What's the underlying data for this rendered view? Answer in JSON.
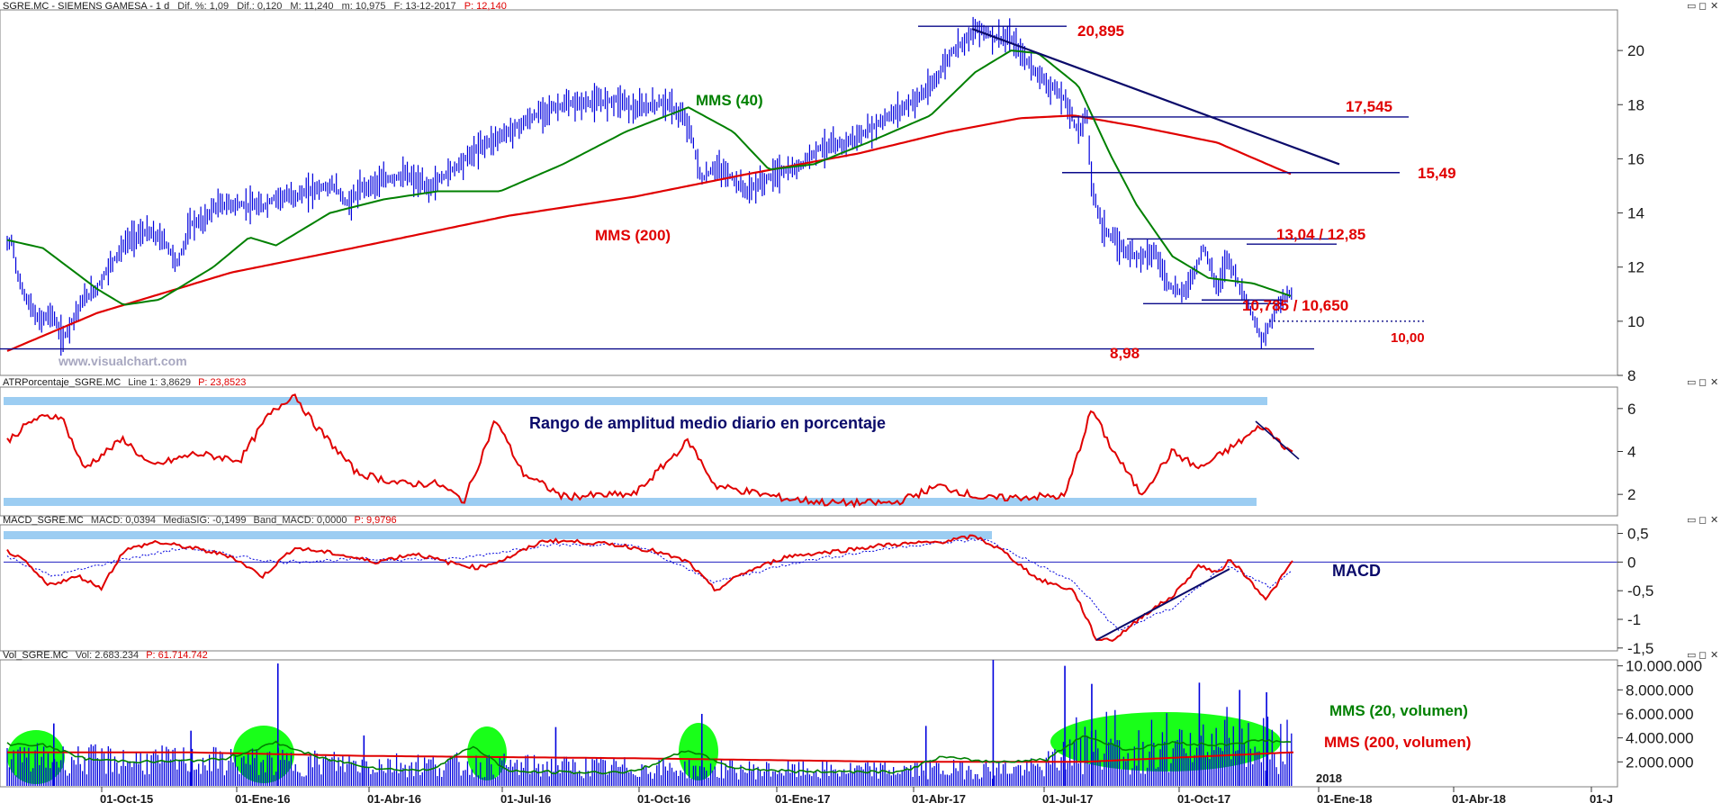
{
  "panels": {
    "price": {
      "header": {
        "symbol": "SGRE.MC - SIEMENS GAMESA - 1 d",
        "dif_pct": "Dif. %: 1,09",
        "dif": "Dif.: 0,120",
        "max": "M: 11,240",
        "min": "m: 10,975",
        "date": "F: 13-12-2017",
        "price": "P: 12,140"
      },
      "y_ticks": [
        "20",
        "18",
        "16",
        "14",
        "12",
        "10",
        "8"
      ],
      "watermark": "www.visualchart.com",
      "labels": {
        "mms40": "MMS (40)",
        "mms200": "MMS (200)"
      },
      "levels": [
        {
          "label": "20,895",
          "value": 20.895
        },
        {
          "label": "17,545",
          "value": 17.545
        },
        {
          "label": "15,49",
          "value": 15.49
        },
        {
          "label": "13,04 / 12,85",
          "value": 13.04
        },
        {
          "label": "10,785 / 10,650",
          "value": 10.785
        },
        {
          "label": "10,00",
          "value": 10.0
        },
        {
          "label": "8,98",
          "value": 8.98
        }
      ]
    },
    "atr": {
      "header": {
        "name": "ATRPorcentaje_SGRE.MC",
        "line": "Line 1: 3,8629",
        "price": "P: 23,8523"
      },
      "y_ticks": [
        "6",
        "4",
        "2"
      ],
      "title": "Rango de amplitud medio diario en porcentaje"
    },
    "macd": {
      "header": {
        "name": "MACD_SGRE.MC",
        "macd": "MACD: 0,0394",
        "signal": "MediaSIG: -0,1499",
        "band": "Band_MACD: 0,0000",
        "price": "P: 9,9796"
      },
      "y_ticks": [
        "0,5",
        "0",
        "-0,5",
        "-1",
        "-1,5"
      ],
      "title": "MACD"
    },
    "volume": {
      "header": {
        "name": "Vol_SGRE.MC",
        "vol": "Vol: 2.683.234",
        "price": "P: 61.714.742"
      },
      "y_ticks": [
        "10.000.000",
        "8.000.000",
        "6.000.000",
        "4.000.000",
        "2.000.000"
      ],
      "labels": {
        "mms20": "MMS (20, volumen)",
        "mms200": "MMS (200, volumen)"
      },
      "year_marker": "2018"
    }
  },
  "x_axis": {
    "ticks": [
      "01-Oct-15",
      "01-Ene-16",
      "01-Abr-16",
      "01-Jul-16",
      "01-Oct-16",
      "01-Ene-17",
      "01-Abr-17",
      "01-Jul-17",
      "01-Oct-17",
      "01-Ene-18",
      "01-Abr-18",
      "01-J"
    ]
  },
  "window_controls": {
    "minimize": "▭",
    "restore": "◻",
    "close": "✕"
  },
  "colors": {
    "price_bars": "#0000dd",
    "mms40": "#008000",
    "mms200": "#e00000",
    "atr_line": "#e00000",
    "macd_line": "#e00000",
    "signal_line": "#0000dd",
    "volume_bars": "#0000dd",
    "highlight_band": "#9ccdf2",
    "trend_line": "#0a0a6a",
    "volume_ellipse": "#19ff19"
  },
  "chart_data": {
    "type": "line",
    "title": "SGRE.MC - SIEMENS GAMESA - 1 d",
    "x_range": [
      "01-Oct-15",
      "01-J"
    ],
    "price_ylim": [
      8,
      21.5
    ],
    "price_keypoints": [
      {
        "t": 0,
        "y": 12.8
      },
      {
        "t": 6,
        "y": 13.0
      },
      {
        "t": 12,
        "y": 11.6
      },
      {
        "t": 22,
        "y": 10.8
      },
      {
        "t": 35,
        "y": 10.0
      },
      {
        "t": 50,
        "y": 10.3
      },
      {
        "t": 62,
        "y": 9.3
      },
      {
        "t": 72,
        "y": 10.0
      },
      {
        "t": 85,
        "y": 10.8
      },
      {
        "t": 100,
        "y": 11.2
      },
      {
        "t": 115,
        "y": 12.1
      },
      {
        "t": 135,
        "y": 13.0
      },
      {
        "t": 155,
        "y": 13.3
      },
      {
        "t": 175,
        "y": 13.0
      },
      {
        "t": 190,
        "y": 12.1
      },
      {
        "t": 205,
        "y": 13.6
      },
      {
        "t": 220,
        "y": 13.7
      },
      {
        "t": 230,
        "y": 14.2
      },
      {
        "t": 240,
        "y": 14.3
      },
      {
        "t": 265,
        "y": 14.3
      },
      {
        "t": 285,
        "y": 14.2
      },
      {
        "t": 300,
        "y": 14.6
      },
      {
        "t": 320,
        "y": 14.6
      },
      {
        "t": 345,
        "y": 14.9
      },
      {
        "t": 365,
        "y": 15.0
      },
      {
        "t": 380,
        "y": 14.3
      },
      {
        "t": 395,
        "y": 14.9
      },
      {
        "t": 420,
        "y": 15.2
      },
      {
        "t": 445,
        "y": 15.4
      },
      {
        "t": 470,
        "y": 14.9
      },
      {
        "t": 500,
        "y": 15.7
      },
      {
        "t": 530,
        "y": 16.5
      },
      {
        "t": 560,
        "y": 17.0
      },
      {
        "t": 600,
        "y": 17.8
      },
      {
        "t": 625,
        "y": 18.0
      },
      {
        "t": 660,
        "y": 18.1
      },
      {
        "t": 685,
        "y": 18.2
      },
      {
        "t": 700,
        "y": 17.8
      },
      {
        "t": 735,
        "y": 18.1
      },
      {
        "t": 760,
        "y": 17.3
      },
      {
        "t": 775,
        "y": 15.2
      },
      {
        "t": 790,
        "y": 15.7
      },
      {
        "t": 805,
        "y": 15.4
      },
      {
        "t": 825,
        "y": 14.8
      },
      {
        "t": 840,
        "y": 15.1
      },
      {
        "t": 860,
        "y": 15.5
      },
      {
        "t": 880,
        "y": 15.6
      },
      {
        "t": 905,
        "y": 16.4
      },
      {
        "t": 930,
        "y": 16.5
      },
      {
        "t": 955,
        "y": 16.9
      },
      {
        "t": 980,
        "y": 17.5
      },
      {
        "t": 1005,
        "y": 18.0
      },
      {
        "t": 1030,
        "y": 18.6
      },
      {
        "t": 1055,
        "y": 20.0
      },
      {
        "t": 1075,
        "y": 20.6
      },
      {
        "t": 1085,
        "y": 20.85
      },
      {
        "t": 1100,
        "y": 20.5
      },
      {
        "t": 1120,
        "y": 20.4
      },
      {
        "t": 1140,
        "y": 19.5
      },
      {
        "t": 1160,
        "y": 18.8
      },
      {
        "t": 1180,
        "y": 18.2
      },
      {
        "t": 1195,
        "y": 17.0
      },
      {
        "t": 1205,
        "y": 17.6
      },
      {
        "t": 1210,
        "y": 15.0
      },
      {
        "t": 1222,
        "y": 13.5
      },
      {
        "t": 1240,
        "y": 12.8
      },
      {
        "t": 1260,
        "y": 12.4
      },
      {
        "t": 1280,
        "y": 12.6
      },
      {
        "t": 1295,
        "y": 11.4
      },
      {
        "t": 1310,
        "y": 11.0
      },
      {
        "t": 1325,
        "y": 11.8
      },
      {
        "t": 1335,
        "y": 12.8
      },
      {
        "t": 1350,
        "y": 11.2
      },
      {
        "t": 1362,
        "y": 12.4
      },
      {
        "t": 1375,
        "y": 11.3
      },
      {
        "t": 1388,
        "y": 10.4
      },
      {
        "t": 1400,
        "y": 9.2
      },
      {
        "t": 1415,
        "y": 10.4
      },
      {
        "t": 1425,
        "y": 10.9
      },
      {
        "t": 1435,
        "y": 11.1
      }
    ],
    "annotated_levels": [
      20.895,
      17.545,
      15.49,
      13.04,
      12.85,
      10.785,
      10.65,
      10.0,
      8.98
    ],
    "atr_ylim": [
      1,
      7
    ],
    "atr_keypoints": [
      {
        "t": 0,
        "y": 4.5
      },
      {
        "t": 30,
        "y": 5.5
      },
      {
        "t": 60,
        "y": 5.7
      },
      {
        "t": 85,
        "y": 3.2
      },
      {
        "t": 130,
        "y": 4.6
      },
      {
        "t": 160,
        "y": 3.3
      },
      {
        "t": 210,
        "y": 3.9
      },
      {
        "t": 260,
        "y": 3.6
      },
      {
        "t": 290,
        "y": 5.6
      },
      {
        "t": 320,
        "y": 6.7
      },
      {
        "t": 340,
        "y": 5.4
      },
      {
        "t": 390,
        "y": 3.0
      },
      {
        "t": 440,
        "y": 2.5
      },
      {
        "t": 480,
        "y": 2.5
      },
      {
        "t": 510,
        "y": 1.7
      },
      {
        "t": 545,
        "y": 5.5
      },
      {
        "t": 575,
        "y": 3.0
      },
      {
        "t": 620,
        "y": 1.9
      },
      {
        "t": 700,
        "y": 2.0
      },
      {
        "t": 760,
        "y": 4.5
      },
      {
        "t": 790,
        "y": 2.4
      },
      {
        "t": 870,
        "y": 1.8
      },
      {
        "t": 920,
        "y": 1.6
      },
      {
        "t": 990,
        "y": 1.6
      },
      {
        "t": 1040,
        "y": 2.4
      },
      {
        "t": 1090,
        "y": 1.8
      },
      {
        "t": 1150,
        "y": 1.9
      },
      {
        "t": 1180,
        "y": 1.9
      },
      {
        "t": 1210,
        "y": 6.0
      },
      {
        "t": 1230,
        "y": 4.3
      },
      {
        "t": 1265,
        "y": 2.0
      },
      {
        "t": 1300,
        "y": 4.0
      },
      {
        "t": 1330,
        "y": 3.2
      },
      {
        "t": 1370,
        "y": 4.3
      },
      {
        "t": 1400,
        "y": 5.2
      },
      {
        "t": 1435,
        "y": 3.9
      }
    ],
    "macd_ylim": [
      -1.5,
      0.6
    ],
    "macd_keypoints": [
      {
        "t": 0,
        "y": 0.2
      },
      {
        "t": 20,
        "y": 0.0
      },
      {
        "t": 45,
        "y": -0.4
      },
      {
        "t": 80,
        "y": -0.25
      },
      {
        "t": 105,
        "y": -0.45
      },
      {
        "t": 130,
        "y": 0.2
      },
      {
        "t": 165,
        "y": 0.35
      },
      {
        "t": 205,
        "y": 0.25
      },
      {
        "t": 250,
        "y": 0.1
      },
      {
        "t": 285,
        "y": -0.25
      },
      {
        "t": 320,
        "y": 0.25
      },
      {
        "t": 365,
        "y": 0.15
      },
      {
        "t": 410,
        "y": 0.0
      },
      {
        "t": 455,
        "y": 0.15
      },
      {
        "t": 490,
        "y": 0.0
      },
      {
        "t": 525,
        "y": -0.1
      },
      {
        "t": 555,
        "y": 0.05
      },
      {
        "t": 600,
        "y": 0.38
      },
      {
        "t": 640,
        "y": 0.35
      },
      {
        "t": 680,
        "y": 0.3
      },
      {
        "t": 720,
        "y": 0.2
      },
      {
        "t": 760,
        "y": 0.0
      },
      {
        "t": 790,
        "y": -0.5
      },
      {
        "t": 820,
        "y": -0.2
      },
      {
        "t": 870,
        "y": 0.1
      },
      {
        "t": 930,
        "y": 0.2
      },
      {
        "t": 980,
        "y": 0.3
      },
      {
        "t": 1040,
        "y": 0.35
      },
      {
        "t": 1080,
        "y": 0.45
      },
      {
        "t": 1110,
        "y": 0.2
      },
      {
        "t": 1150,
        "y": -0.3
      },
      {
        "t": 1190,
        "y": -0.5
      },
      {
        "t": 1215,
        "y": -1.35
      },
      {
        "t": 1235,
        "y": -1.35
      },
      {
        "t": 1270,
        "y": -0.9
      },
      {
        "t": 1300,
        "y": -0.6
      },
      {
        "t": 1330,
        "y": -0.05
      },
      {
        "t": 1350,
        "y": -0.2
      },
      {
        "t": 1365,
        "y": 0.05
      },
      {
        "t": 1385,
        "y": -0.3
      },
      {
        "t": 1405,
        "y": -0.65
      },
      {
        "t": 1435,
        "y": 0.04
      }
    ],
    "signal_keypoints": [
      {
        "t": 0,
        "y": 0.1
      },
      {
        "t": 50,
        "y": -0.25
      },
      {
        "t": 130,
        "y": 0.05
      },
      {
        "t": 200,
        "y": 0.25
      },
      {
        "t": 300,
        "y": 0.0
      },
      {
        "t": 400,
        "y": 0.05
      },
      {
        "t": 500,
        "y": 0.05
      },
      {
        "t": 600,
        "y": 0.3
      },
      {
        "t": 700,
        "y": 0.3
      },
      {
        "t": 790,
        "y": -0.35
      },
      {
        "t": 880,
        "y": 0.0
      },
      {
        "t": 1000,
        "y": 0.28
      },
      {
        "t": 1090,
        "y": 0.4
      },
      {
        "t": 1190,
        "y": -0.35
      },
      {
        "t": 1240,
        "y": -1.2
      },
      {
        "t": 1300,
        "y": -0.8
      },
      {
        "t": 1360,
        "y": -0.05
      },
      {
        "t": 1410,
        "y": -0.45
      },
      {
        "t": 1435,
        "y": -0.15
      }
    ],
    "volume_ylim": [
      0,
      10500000
    ],
    "volume_mms20_keypoints": [
      {
        "t": 0,
        "y": 3500000
      },
      {
        "t": 40,
        "y": 3400000
      },
      {
        "t": 90,
        "y": 2200000
      },
      {
        "t": 160,
        "y": 2000000
      },
      {
        "t": 240,
        "y": 2200000
      },
      {
        "t": 300,
        "y": 3600000
      },
      {
        "t": 350,
        "y": 2300000
      },
      {
        "t": 420,
        "y": 1400000
      },
      {
        "t": 470,
        "y": 1300000
      },
      {
        "t": 520,
        "y": 3300000
      },
      {
        "t": 560,
        "y": 1200000
      },
      {
        "t": 650,
        "y": 1100000
      },
      {
        "t": 700,
        "y": 1200000
      },
      {
        "t": 760,
        "y": 3000000
      },
      {
        "t": 810,
        "y": 1500000
      },
      {
        "t": 880,
        "y": 1200000
      },
      {
        "t": 1000,
        "y": 1200000
      },
      {
        "t": 1040,
        "y": 2400000
      },
      {
        "t": 1100,
        "y": 2000000
      },
      {
        "t": 1160,
        "y": 2200000
      },
      {
        "t": 1200,
        "y": 4200000
      },
      {
        "t": 1250,
        "y": 3000000
      },
      {
        "t": 1300,
        "y": 3600000
      },
      {
        "t": 1350,
        "y": 3400000
      },
      {
        "t": 1400,
        "y": 3800000
      },
      {
        "t": 1435,
        "y": 3600000
      }
    ],
    "volume_mms200_keypoints": [
      {
        "t": 0,
        "y": 2800000
      },
      {
        "t": 200,
        "y": 2800000
      },
      {
        "t": 400,
        "y": 2500000
      },
      {
        "t": 700,
        "y": 2300000
      },
      {
        "t": 1000,
        "y": 2000000
      },
      {
        "t": 1200,
        "y": 2000000
      },
      {
        "t": 1435,
        "y": 2800000
      }
    ],
    "volume_spikes": [
      {
        "t": 52,
        "y": 5200000
      },
      {
        "t": 205,
        "y": 4600000
      },
      {
        "t": 302,
        "y": 10200000
      },
      {
        "t": 398,
        "y": 4200000
      },
      {
        "t": 612,
        "y": 4900000
      },
      {
        "t": 775,
        "y": 6000000
      },
      {
        "t": 1025,
        "y": 5000000
      },
      {
        "t": 1100,
        "y": 10500000
      },
      {
        "t": 1180,
        "y": 10000000
      },
      {
        "t": 1210,
        "y": 8500000
      },
      {
        "t": 1330,
        "y": 8600000
      },
      {
        "t": 1375,
        "y": 8000000
      },
      {
        "t": 1405,
        "y": 7800000
      }
    ]
  }
}
